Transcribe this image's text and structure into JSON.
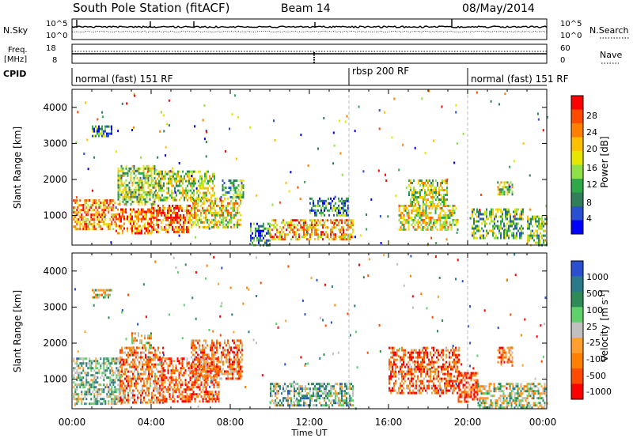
{
  "header": {
    "station": "South Pole Station (fitACF)",
    "beam": "Beam 14",
    "date": "08/May/2014"
  },
  "top_panels": {
    "noise": {
      "left_label": "N.Sky",
      "right_label": "N.Search",
      "left_ticks": [
        "10^5",
        "10^0"
      ],
      "right_ticks": [
        "10^5",
        "10^0"
      ]
    },
    "freq": {
      "left_label_1": "Freq.",
      "left_label_2": "[MHz]",
      "right_label": "Nave",
      "left_ticks": [
        "18",
        "8"
      ],
      "right_ticks": [
        "60",
        "0"
      ]
    },
    "cpid": {
      "label": "CPID",
      "segments": [
        {
          "name": "normal (fast) 151 RF",
          "start_hour": 0,
          "end_hour": 14
        },
        {
          "name": "rbsp 200 RF",
          "start_hour": 14,
          "end_hour": 20
        },
        {
          "name": "normal (fast) 151 RF",
          "start_hour": 20,
          "end_hour": 24
        }
      ]
    }
  },
  "x_axis": {
    "label": "Time UT",
    "ticks": [
      "00:00",
      "04:00",
      "08:00",
      "12:00",
      "16:00",
      "20:00",
      "00:00"
    ]
  },
  "y_axis": {
    "label": "Slant Range [km]",
    "ticks": [
      "1000",
      "2000",
      "3000",
      "4000"
    ]
  },
  "power_scale": {
    "label": "Power [dB]",
    "ticks": [
      "28",
      "24",
      "20",
      "16",
      "12",
      "8",
      "4"
    ],
    "colors": [
      "#ff0000",
      "#ff4a00",
      "#ff8000",
      "#ffc000",
      "#e6e600",
      "#90e04a",
      "#2fa84a",
      "#2e7f5a",
      "#2850d0",
      "#0000ff"
    ]
  },
  "velocity_scale": {
    "label_main": "Velocity",
    "label_unit": "[m s",
    "label_exp": "-1",
    "label_close": "]",
    "ticks": [
      "1000",
      "500",
      "100",
      "25",
      "-25",
      "-100",
      "-500",
      "-1000"
    ],
    "colors": [
      "#2a4fd0",
      "#2a7a8a",
      "#2e8b57",
      "#5fd06a",
      "#c0c0c0",
      "#ff9f30",
      "#ff8000",
      "#ff4a00",
      "#ff0000"
    ]
  },
  "chart_data": {
    "type": "heatmap",
    "x_unit": "hours UT",
    "xlim": [
      0,
      24
    ],
    "y_unit": "km",
    "ylim": [
      180,
      4500
    ],
    "power_blobs": [
      {
        "t0": 0.05,
        "t1": 2.2,
        "r0": 650,
        "r1": 1450,
        "level": 0.72
      },
      {
        "t0": 1.0,
        "t1": 2.0,
        "r0": 3200,
        "r1": 3500,
        "level": 0.3
      },
      {
        "t0": 2.2,
        "t1": 4.0,
        "r0": 500,
        "r1": 1200,
        "level": 0.78
      },
      {
        "t0": 2.3,
        "t1": 4.2,
        "r0": 1300,
        "r1": 2400,
        "level": 0.45
      },
      {
        "t0": 4.0,
        "t1": 6.0,
        "r0": 520,
        "r1": 1300,
        "level": 0.8
      },
      {
        "t0": 4.2,
        "t1": 7.2,
        "r0": 1400,
        "r1": 2250,
        "level": 0.5
      },
      {
        "t0": 6.0,
        "t1": 8.5,
        "r0": 700,
        "r1": 1500,
        "level": 0.6
      },
      {
        "t0": 7.5,
        "t1": 8.7,
        "r0": 1500,
        "r1": 2000,
        "level": 0.4
      },
      {
        "t0": 9.0,
        "t1": 10.0,
        "r0": 200,
        "r1": 800,
        "level": 0.25
      },
      {
        "t0": 10.0,
        "t1": 14.2,
        "r0": 350,
        "r1": 900,
        "level": 0.7
      },
      {
        "t0": 12.0,
        "t1": 14.0,
        "r0": 1000,
        "r1": 1500,
        "level": 0.25
      },
      {
        "t0": 16.5,
        "t1": 19.5,
        "r0": 600,
        "r1": 1300,
        "level": 0.55
      },
      {
        "t0": 17.0,
        "t1": 19.0,
        "r0": 1300,
        "r1": 2000,
        "level": 0.5
      },
      {
        "t0": 20.2,
        "t1": 22.8,
        "r0": 400,
        "r1": 1200,
        "level": 0.4
      },
      {
        "t0": 21.5,
        "t1": 22.3,
        "r0": 1600,
        "r1": 1950,
        "level": 0.5
      },
      {
        "t0": 23.0,
        "t1": 24.0,
        "r0": 200,
        "r1": 1000,
        "level": 0.45
      }
    ],
    "velocity_blobs": [
      {
        "t0": 0.05,
        "t1": 2.5,
        "r0": 350,
        "r1": 1600,
        "level": 0.62
      },
      {
        "t0": 1.0,
        "t1": 2.0,
        "r0": 3250,
        "r1": 3500,
        "level": 0.45
      },
      {
        "t0": 2.4,
        "t1": 4.6,
        "r0": 350,
        "r1": 1900,
        "level": 0.3
      },
      {
        "t0": 3.0,
        "t1": 4.0,
        "r0": 1900,
        "r1": 2300,
        "level": 0.45
      },
      {
        "t0": 4.5,
        "t1": 7.4,
        "r0": 400,
        "r1": 1600,
        "level": 0.22
      },
      {
        "t0": 6.0,
        "t1": 8.6,
        "r0": 1000,
        "r1": 2100,
        "level": 0.28
      },
      {
        "t0": 10.0,
        "t1": 14.2,
        "r0": 300,
        "r1": 900,
        "level": 0.65
      },
      {
        "t0": 16.0,
        "t1": 19.6,
        "r0": 600,
        "r1": 1900,
        "level": 0.22
      },
      {
        "t0": 19.5,
        "t1": 20.5,
        "r0": 400,
        "r1": 1200,
        "level": 0.15
      },
      {
        "t0": 21.5,
        "t1": 22.3,
        "r0": 1500,
        "r1": 1900,
        "level": 0.2
      },
      {
        "t0": 20.5,
        "t1": 24.0,
        "r0": 200,
        "r1": 900,
        "level": 0.55
      }
    ]
  }
}
